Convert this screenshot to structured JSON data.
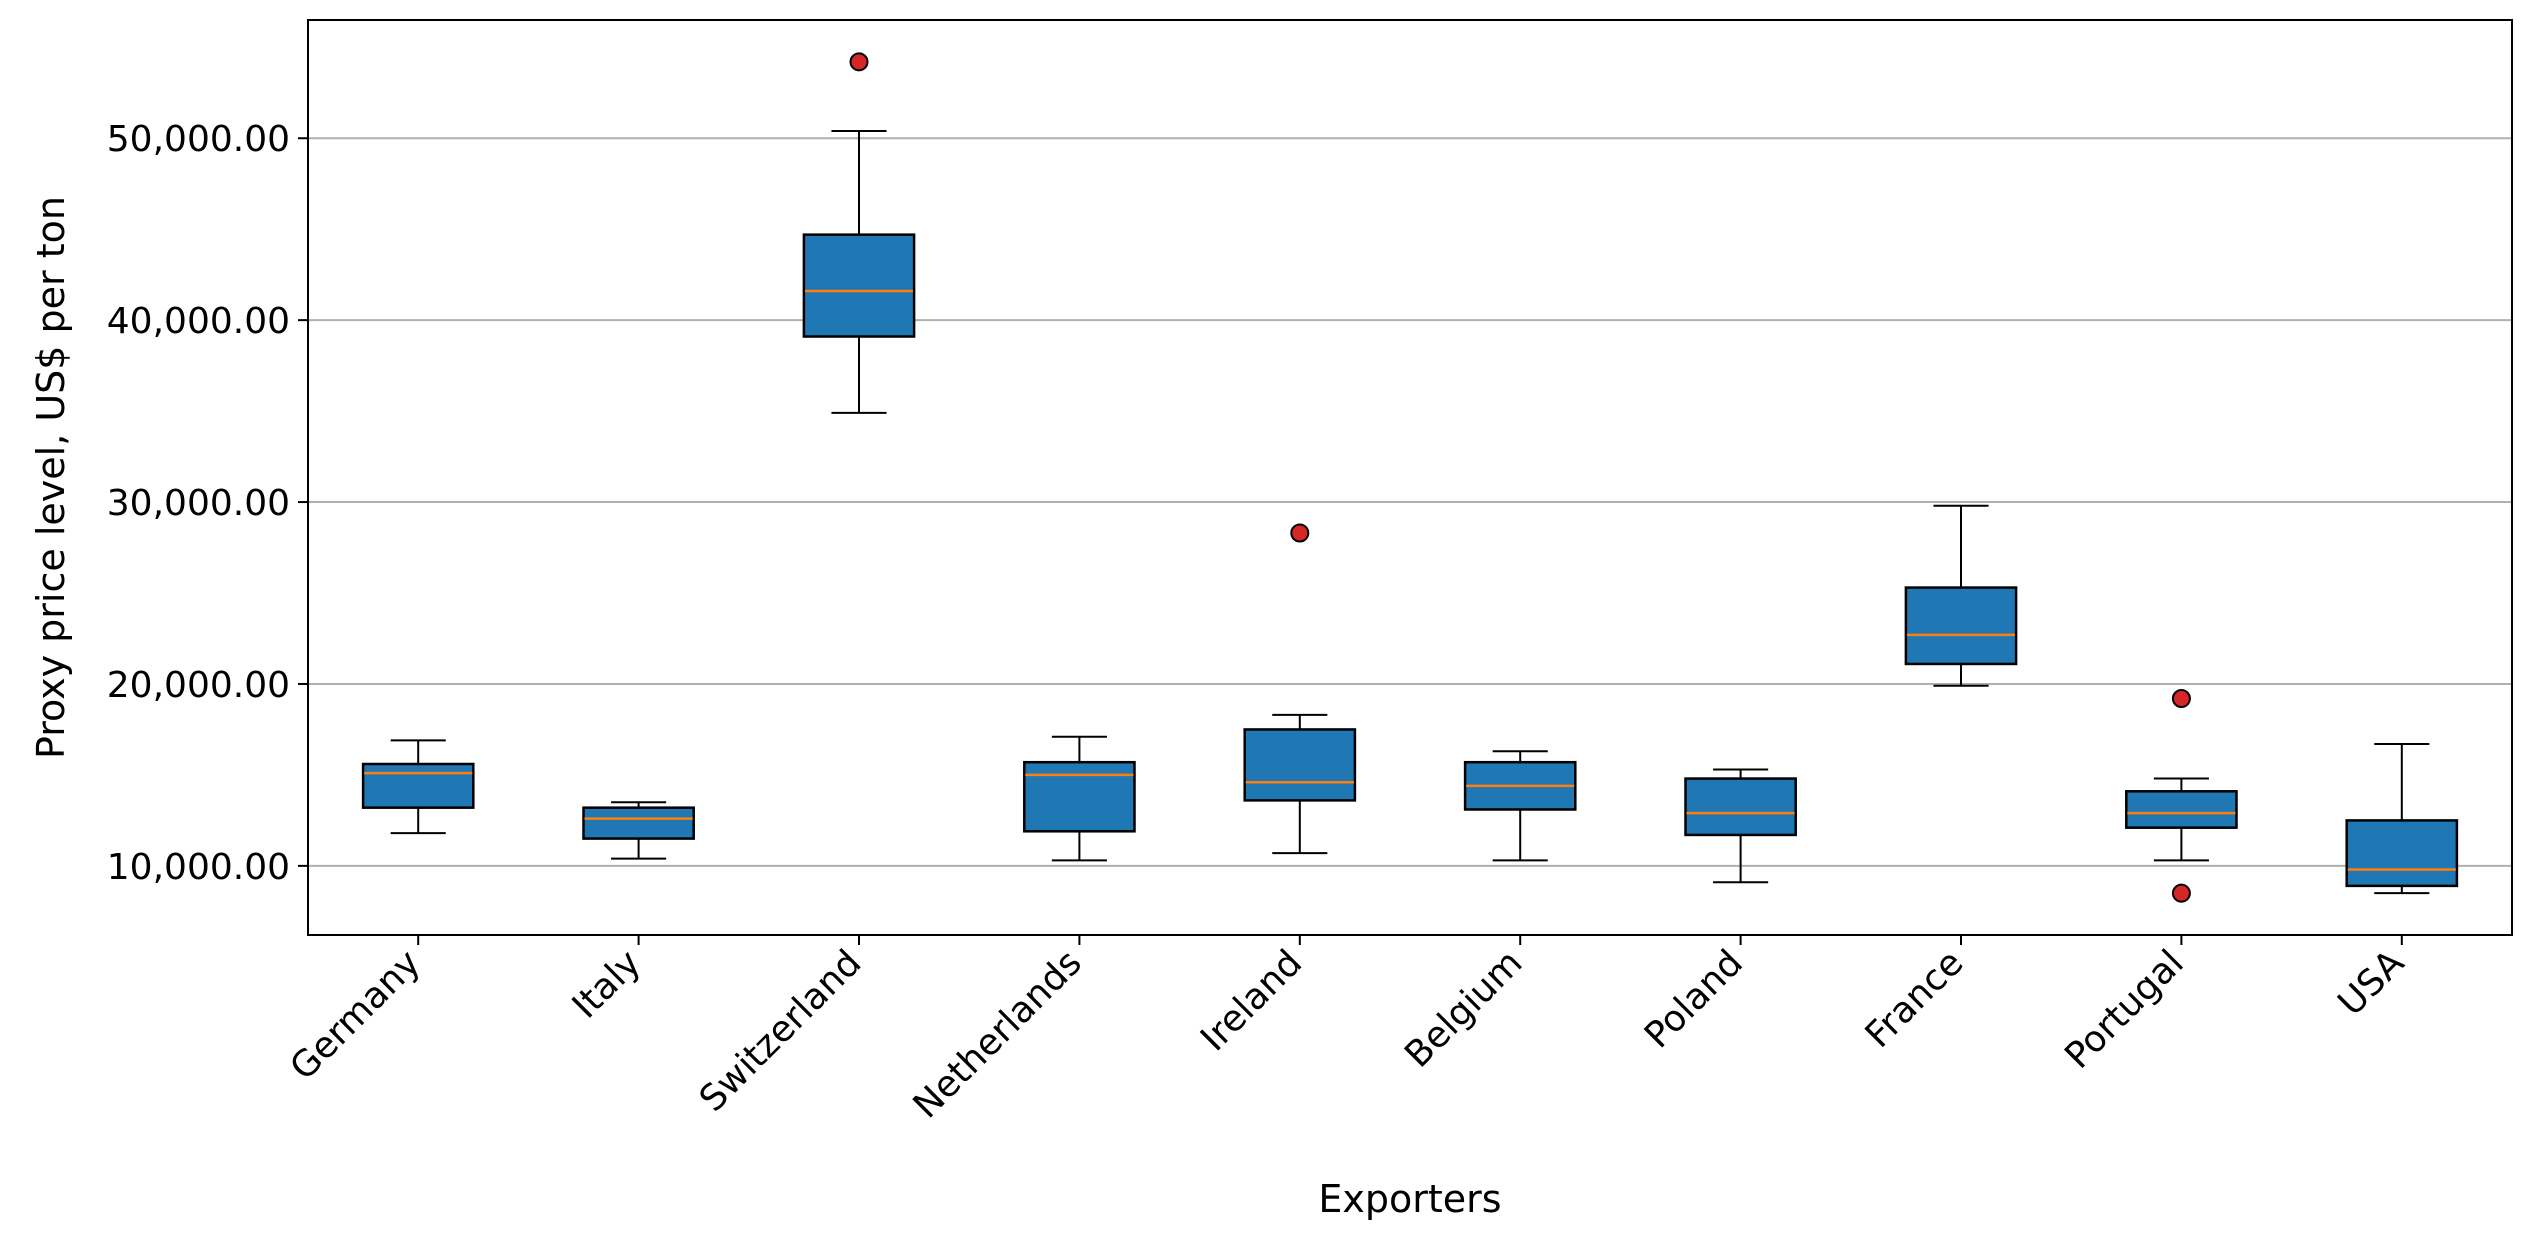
{
  "chart_data": {
    "type": "box",
    "xlabel": "Exporters",
    "ylabel": "Proxy price level, US$ per ton",
    "ylim": [
      6200,
      56500
    ],
    "yticks": [
      10000,
      20000,
      30000,
      40000,
      50000
    ],
    "ytick_labels": [
      "10,000.00",
      "20,000.00",
      "30,000.00",
      "40,000.00",
      "50,000.00"
    ],
    "grid": "y",
    "box_color": "#1f77b4",
    "median_color": "#ff7f0e",
    "outlier_color": "#d62728",
    "categories": [
      "Germany",
      "Italy",
      "Switzerland",
      "Netherlands",
      "Ireland",
      "Belgium",
      "Poland",
      "France",
      "Portugal",
      "USA"
    ],
    "boxes": [
      {
        "whisker_low": 11800,
        "q1": 13200,
        "median": 15100,
        "q3": 15600,
        "whisker_high": 16900,
        "outliers": []
      },
      {
        "whisker_low": 10400,
        "q1": 11500,
        "median": 12600,
        "q3": 13200,
        "whisker_high": 13500,
        "outliers": []
      },
      {
        "whisker_low": 34900,
        "q1": 39100,
        "median": 41600,
        "q3": 44700,
        "whisker_high": 50400,
        "outliers": [
          54200
        ]
      },
      {
        "whisker_low": 10300,
        "q1": 11900,
        "median": 15000,
        "q3": 15700,
        "whisker_high": 17100,
        "outliers": []
      },
      {
        "whisker_low": 10700,
        "q1": 13600,
        "median": 14600,
        "q3": 17500,
        "whisker_high": 18300,
        "outliers": [
          28300
        ]
      },
      {
        "whisker_low": 10300,
        "q1": 13100,
        "median": 14400,
        "q3": 15700,
        "whisker_high": 16300,
        "outliers": []
      },
      {
        "whisker_low": 9100,
        "q1": 11700,
        "median": 12900,
        "q3": 14800,
        "whisker_high": 15300,
        "outliers": []
      },
      {
        "whisker_low": 19900,
        "q1": 21100,
        "median": 22700,
        "q3": 25300,
        "whisker_high": 29800,
        "outliers": []
      },
      {
        "whisker_low": 10300,
        "q1": 12100,
        "median": 12900,
        "q3": 14100,
        "whisker_high": 14800,
        "outliers": [
          8500,
          19200
        ]
      },
      {
        "whisker_low": 8500,
        "q1": 8900,
        "median": 9800,
        "q3": 12500,
        "whisker_high": 16700,
        "outliers": []
      }
    ]
  }
}
